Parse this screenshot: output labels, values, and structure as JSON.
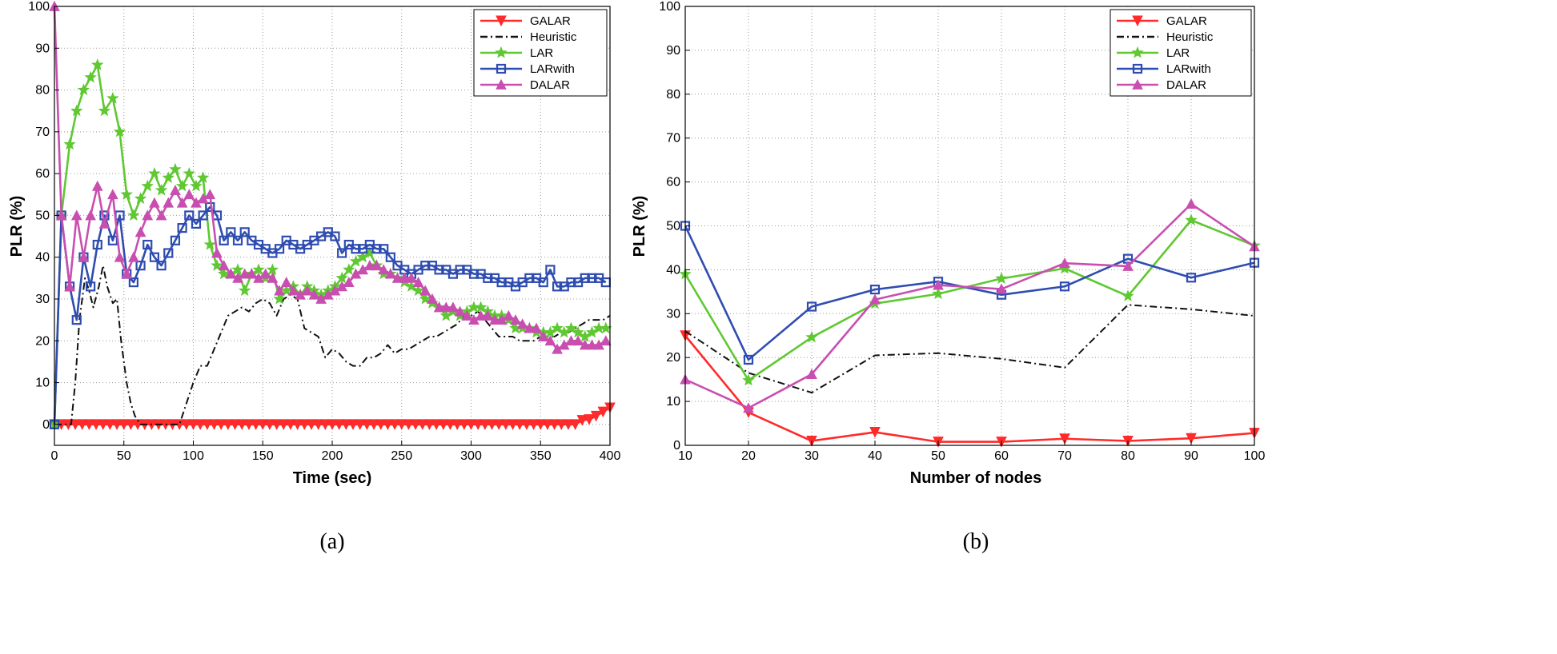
{
  "chart_data": [
    {
      "type": "line",
      "panel_id": "a",
      "caption": "(a)",
      "xlabel": "Time (sec)",
      "ylabel": "PLR (%)",
      "xlim": [
        0,
        400
      ],
      "ylim": [
        -5,
        100
      ],
      "xticks": [
        0,
        50,
        100,
        150,
        200,
        250,
        300,
        350,
        400
      ],
      "yticks": [
        0,
        10,
        20,
        30,
        40,
        50,
        60,
        70,
        80,
        90,
        100
      ],
      "grid": true,
      "legend_position": "top-right",
      "series": [
        {
          "name": "GALAR",
          "color": "#ff2a2a",
          "marker": "triangle-down",
          "dash": "",
          "x": [
            0,
            5,
            10,
            15,
            20,
            25,
            30,
            35,
            40,
            45,
            50,
            55,
            60,
            65,
            70,
            75,
            80,
            85,
            90,
            95,
            100,
            105,
            110,
            115,
            120,
            125,
            130,
            135,
            140,
            145,
            150,
            155,
            160,
            165,
            170,
            175,
            180,
            185,
            190,
            195,
            200,
            205,
            210,
            215,
            220,
            225,
            230,
            235,
            240,
            245,
            250,
            255,
            260,
            265,
            270,
            275,
            280,
            285,
            290,
            295,
            300,
            305,
            310,
            315,
            320,
            325,
            330,
            335,
            340,
            345,
            350,
            355,
            360,
            365,
            370,
            375,
            380,
            385,
            390,
            395,
            400
          ],
          "y": [
            0,
            0,
            0,
            0,
            0,
            0,
            0,
            0,
            0,
            0,
            0,
            0,
            0,
            0,
            0,
            0,
            0,
            0,
            0,
            0,
            0,
            0,
            0,
            0,
            0,
            0,
            0,
            0,
            0,
            0,
            0,
            0,
            0,
            0,
            0,
            0,
            0,
            0,
            0,
            0,
            0,
            0,
            0,
            0,
            0,
            0,
            0,
            0,
            0,
            0,
            0,
            0,
            0,
            0,
            0,
            0,
            0,
            0,
            0,
            0,
            0,
            0,
            0,
            0,
            0,
            0,
            0,
            0,
            0,
            0,
            0,
            0,
            0,
            0,
            0,
            0,
            1,
            1.2,
            2,
            3,
            4
          ]
        },
        {
          "name": "Heuristic",
          "color": "#111111",
          "marker": "none",
          "dash": "9 4 2 4",
          "x": [
            0,
            12,
            15,
            18,
            22,
            25,
            28,
            32,
            35,
            38,
            42,
            45,
            48,
            52,
            55,
            58,
            62,
            65,
            70,
            75,
            80,
            85,
            90,
            95,
            100,
            105,
            110,
            115,
            120,
            125,
            130,
            135,
            140,
            145,
            150,
            155,
            160,
            165,
            170,
            175,
            180,
            185,
            190,
            195,
            200,
            205,
            210,
            215,
            220,
            225,
            230,
            235,
            240,
            245,
            250,
            255,
            260,
            265,
            270,
            275,
            280,
            285,
            290,
            295,
            300,
            305,
            310,
            315,
            320,
            325,
            330,
            335,
            340,
            345,
            350,
            355,
            360,
            365,
            370,
            375,
            380,
            385,
            390,
            395,
            400
          ],
          "y": [
            0,
            0,
            10,
            25,
            35,
            32,
            28,
            33,
            38,
            33,
            29,
            30,
            20,
            10,
            5,
            2,
            0,
            0,
            0,
            0,
            0,
            0,
            0,
            5,
            10,
            14,
            14,
            18,
            22,
            26,
            27,
            28,
            27,
            29,
            30,
            29,
            26,
            30,
            31,
            30,
            23,
            22,
            21,
            16,
            18,
            17,
            15,
            14,
            14,
            16,
            16,
            17,
            19,
            17,
            18,
            18,
            19,
            20,
            21,
            21,
            22,
            23,
            24,
            26,
            26,
            27,
            25,
            23,
            21,
            21,
            21,
            20,
            20,
            20,
            21,
            21,
            21,
            22,
            22,
            23,
            24,
            25,
            25,
            25,
            26
          ]
        },
        {
          "name": "LAR",
          "color": "#5fc832",
          "marker": "star",
          "dash": "",
          "x": [
            0,
            5,
            11,
            16,
            21,
            26,
            31,
            36,
            42,
            47,
            52,
            57,
            62,
            67,
            72,
            77,
            82,
            87,
            92,
            97,
            102,
            107,
            112,
            117,
            122,
            127,
            132,
            137,
            142,
            147,
            152,
            157,
            162,
            167,
            172,
            177,
            182,
            187,
            192,
            197,
            202,
            207,
            212,
            217,
            222,
            227,
            232,
            237,
            242,
            247,
            252,
            257,
            262,
            267,
            272,
            277,
            282,
            287,
            292,
            297,
            302,
            307,
            312,
            317,
            322,
            327,
            332,
            337,
            342,
            347,
            352,
            357,
            362,
            367,
            372,
            377,
            382,
            387,
            392,
            397
          ],
          "y": [
            0,
            50,
            67,
            75,
            80,
            83,
            86,
            75,
            78,
            70,
            55,
            50,
            54,
            57,
            60,
            56,
            59,
            61,
            57,
            60,
            57,
            59,
            43,
            38,
            36,
            36,
            37,
            32,
            36,
            37,
            35,
            37,
            30,
            32,
            33,
            31,
            33,
            32,
            31,
            32,
            33,
            35,
            37,
            39,
            40,
            41,
            38,
            36,
            36,
            35,
            34,
            33,
            32,
            30,
            29,
            28,
            26,
            27,
            26,
            27,
            28,
            28,
            27,
            26,
            26,
            25,
            23,
            23,
            23,
            22,
            22,
            22,
            23,
            22,
            23,
            22,
            21,
            22,
            23,
            23
          ]
        },
        {
          "name": "LARwith",
          "color": "#2f4cb0",
          "marker": "square",
          "dash": "",
          "x": [
            0,
            5,
            11,
            16,
            21,
            26,
            31,
            36,
            42,
            47,
            52,
            57,
            62,
            67,
            72,
            77,
            82,
            87,
            92,
            97,
            102,
            107,
            112,
            117,
            122,
            127,
            132,
            137,
            142,
            147,
            152,
            157,
            162,
            167,
            172,
            177,
            182,
            187,
            192,
            197,
            202,
            207,
            212,
            217,
            222,
            227,
            232,
            237,
            242,
            247,
            252,
            257,
            262,
            267,
            272,
            277,
            282,
            287,
            292,
            297,
            302,
            307,
            312,
            317,
            322,
            327,
            332,
            337,
            342,
            347,
            352,
            357,
            362,
            367,
            372,
            377,
            382,
            387,
            392,
            397
          ],
          "y": [
            0,
            50,
            33,
            25,
            40,
            33,
            43,
            50,
            44,
            50,
            36,
            34,
            38,
            43,
            40,
            38,
            41,
            44,
            47,
            50,
            48,
            50,
            52,
            50,
            44,
            46,
            44,
            46,
            44,
            43,
            42,
            41,
            42,
            44,
            43,
            42,
            43,
            44,
            45,
            46,
            45,
            41,
            43,
            42,
            42,
            43,
            42,
            42,
            40,
            38,
            37,
            36,
            37,
            38,
            38,
            37,
            37,
            36,
            37,
            37,
            36,
            36,
            35,
            35,
            34,
            34,
            33,
            34,
            35,
            35,
            34,
            37,
            33,
            33,
            34,
            34,
            35,
            35,
            35,
            34
          ]
        },
        {
          "name": "DALAR",
          "color": "#c84fb0",
          "marker": "triangle-up",
          "dash": "",
          "x": [
            0,
            5,
            11,
            16,
            21,
            26,
            31,
            36,
            42,
            47,
            52,
            57,
            62,
            67,
            72,
            77,
            82,
            87,
            92,
            97,
            102,
            107,
            112,
            117,
            122,
            127,
            132,
            137,
            142,
            147,
            152,
            157,
            162,
            167,
            172,
            177,
            182,
            187,
            192,
            197,
            202,
            207,
            212,
            217,
            222,
            227,
            232,
            237,
            242,
            247,
            252,
            257,
            262,
            267,
            272,
            277,
            282,
            287,
            292,
            297,
            302,
            307,
            312,
            317,
            322,
            327,
            332,
            337,
            342,
            347,
            352,
            357,
            362,
            367,
            372,
            377,
            382,
            387,
            392,
            397
          ],
          "y": [
            100,
            50,
            33,
            50,
            40,
            50,
            57,
            48,
            55,
            40,
            36,
            40,
            46,
            50,
            53,
            50,
            53,
            56,
            53,
            55,
            53,
            54,
            55,
            41,
            38,
            36,
            35,
            36,
            36,
            35,
            36,
            35,
            32,
            34,
            32,
            31,
            32,
            31,
            30,
            31,
            32,
            33,
            34,
            36,
            37,
            38,
            38,
            37,
            36,
            35,
            35,
            35,
            34,
            32,
            30,
            28,
            28,
            28,
            27,
            26,
            25,
            26,
            26,
            25,
            25,
            26,
            25,
            24,
            23,
            23,
            21,
            20,
            18,
            19,
            20,
            20,
            19,
            19,
            19,
            20
          ]
        }
      ]
    },
    {
      "type": "line",
      "panel_id": "b",
      "caption": "(b)",
      "xlabel": "Number of nodes",
      "ylabel": "PLR (%)",
      "xlim": [
        10,
        100
      ],
      "ylim": [
        0,
        100
      ],
      "xticks": [
        10,
        20,
        30,
        40,
        50,
        60,
        70,
        80,
        90,
        100
      ],
      "yticks": [
        0,
        10,
        20,
        30,
        40,
        50,
        60,
        70,
        80,
        90,
        100
      ],
      "grid": true,
      "legend_position": "top-right",
      "series": [
        {
          "name": "GALAR",
          "color": "#ff2a2a",
          "marker": "triangle-down",
          "dash": "",
          "x": [
            10,
            20,
            30,
            40,
            50,
            60,
            70,
            80,
            90,
            100
          ],
          "y": [
            25,
            7.5,
            1,
            3,
            0.8,
            0.8,
            1.5,
            1,
            1.6,
            2.8
          ]
        },
        {
          "name": "Heuristic",
          "color": "#111111",
          "marker": "none",
          "dash": "9 4 2 4",
          "x": [
            10,
            20,
            30,
            40,
            50,
            60,
            70,
            80,
            90,
            100
          ],
          "y": [
            26,
            16.5,
            12,
            20.5,
            21,
            19.7,
            17.7,
            32,
            31,
            29.5
          ]
        },
        {
          "name": "LAR",
          "color": "#5fc832",
          "marker": "star",
          "dash": "",
          "x": [
            10,
            20,
            30,
            40,
            50,
            60,
            70,
            80,
            90,
            100
          ],
          "y": [
            39,
            14.8,
            24.6,
            32.3,
            34.5,
            38,
            40.3,
            34,
            51.3,
            45.5
          ]
        },
        {
          "name": "LARwith",
          "color": "#2f4cb0",
          "marker": "square",
          "dash": "",
          "x": [
            10,
            20,
            30,
            40,
            50,
            60,
            70,
            80,
            90,
            100
          ],
          "y": [
            50,
            19.5,
            31.6,
            35.5,
            37.3,
            34.3,
            36.2,
            42.5,
            38.2,
            41.6
          ]
        },
        {
          "name": "DALAR",
          "color": "#c84fb0",
          "marker": "triangle-up",
          "dash": "",
          "x": [
            10,
            20,
            30,
            40,
            50,
            60,
            70,
            80,
            90,
            100
          ],
          "y": [
            15,
            8.5,
            16.2,
            33.2,
            36.5,
            35.6,
            41.5,
            40.8,
            55,
            45.3
          ]
        }
      ]
    }
  ]
}
